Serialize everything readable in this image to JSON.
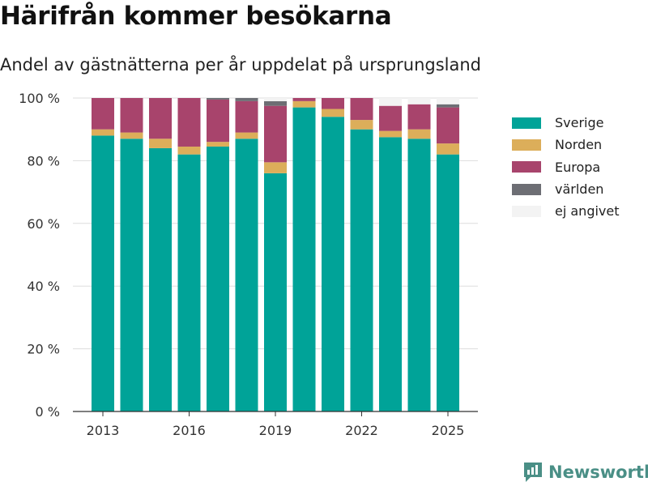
{
  "header": {
    "title": "Härifrån kommer besökarna",
    "subtitle": "Andel av gästnätterna per år uppdelat på ursprungsland"
  },
  "brand": {
    "name": "Newsworthy",
    "icon": "bar-chart-icon",
    "color": "#4a8f86"
  },
  "chart_data": {
    "type": "bar",
    "stacked": true,
    "categories": [
      "2013",
      "2014",
      "2015",
      "2016",
      "2017",
      "2018",
      "2019",
      "2020",
      "2021",
      "2022",
      "2023",
      "2024",
      "2025"
    ],
    "x_ticks": [
      "2013",
      "2016",
      "2019",
      "2022",
      "2025"
    ],
    "y_ticks": [
      "0 %",
      "20 %",
      "40 %",
      "60 %",
      "80 %",
      "100 %"
    ],
    "ylim": [
      0,
      100
    ],
    "grid": true,
    "legend_position": "right",
    "series": [
      {
        "name": "Sverige",
        "color": "#00a398",
        "values": [
          88,
          87,
          84,
          82,
          84.5,
          87,
          76,
          97,
          94,
          90,
          87.5,
          87,
          82
        ]
      },
      {
        "name": "Norden",
        "color": "#dcae5a",
        "values": [
          2,
          2,
          3,
          2.5,
          1.5,
          2,
          3.5,
          2,
          2.5,
          3,
          2,
          3,
          3.5
        ]
      },
      {
        "name": "Europa",
        "color": "#a8446c",
        "values": [
          10,
          11,
          13,
          15.5,
          13.5,
          10,
          18,
          1,
          3.5,
          7,
          8,
          8,
          11.5
        ]
      },
      {
        "name": "världen",
        "color": "#6d6e74",
        "values": [
          0,
          0,
          0,
          0,
          0.5,
          1,
          1.5,
          0,
          0,
          0,
          0,
          0,
          1
        ]
      },
      {
        "name": "ej angivet",
        "color": "#f3f3f3",
        "values": [
          0,
          0,
          0,
          0,
          0,
          0,
          1,
          0,
          0,
          0,
          2.5,
          2,
          2
        ]
      }
    ]
  }
}
